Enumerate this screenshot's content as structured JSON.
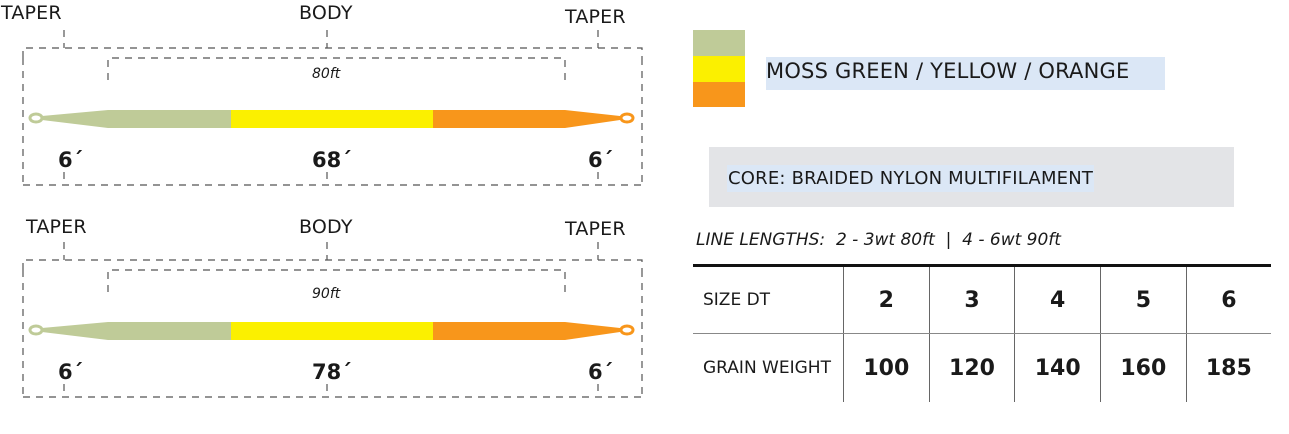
{
  "diagrams": [
    {
      "labels": {
        "left": "TAPER",
        "center": "BODY",
        "right": "TAPER"
      },
      "total_length": "80ft",
      "segments": {
        "left": "6´",
        "center": "68´",
        "right": "6´"
      }
    },
    {
      "labels": {
        "left": "TAPER",
        "center": "BODY",
        "right": "TAPER"
      },
      "total_length": "90ft",
      "segments": {
        "left": "6´",
        "center": "78´",
        "right": "6´"
      }
    }
  ],
  "colors": {
    "moss_green": "#bfcb98",
    "yellow": "#fbf000",
    "orange": "#f8961b",
    "label": "MOSS GREEN / YELLOW / ORANGE"
  },
  "core": {
    "label": "CORE: BRAIDED NYLON MULTIFILAMENT"
  },
  "line_lengths": "LINE LENGTHS:  2 - 3wt 80ft  |  4 - 6wt 90ft",
  "table": {
    "rows": [
      {
        "label": "SIZE DT",
        "values": [
          "2",
          "3",
          "4",
          "5",
          "6"
        ]
      },
      {
        "label": "GRAIN WEIGHT",
        "values": [
          "100",
          "120",
          "140",
          "160",
          "185"
        ]
      }
    ]
  }
}
